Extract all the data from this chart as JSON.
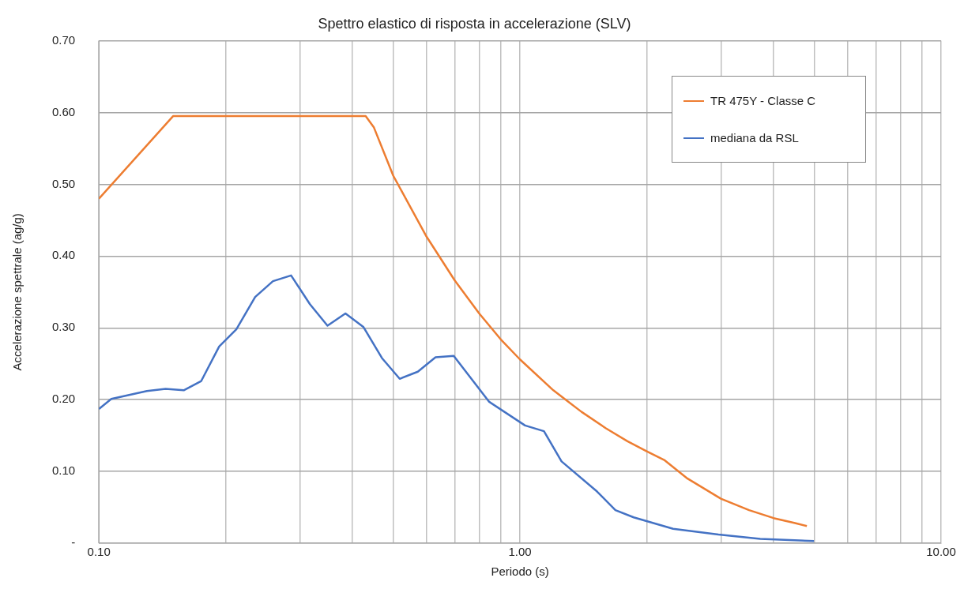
{
  "chart_data": {
    "type": "line",
    "title": "Spettro elastico di risposta in accelerazione (SLV)",
    "xlabel": "Periodo (s)",
    "ylabel": "Accelerazione spettrale (ag/g)",
    "log": "x",
    "grid": true,
    "legend": "top right",
    "marker": "none",
    "line_style": "solid",
    "xlim": [
      0.1,
      10
    ],
    "xticks": [
      {
        "value": 0.1,
        "label": "0.10"
      },
      {
        "value": 0.2,
        "label": null
      },
      {
        "value": 0.3,
        "label": null
      },
      {
        "value": 0.4,
        "label": null
      },
      {
        "value": 0.5,
        "label": null
      },
      {
        "value": 0.6,
        "label": null
      },
      {
        "value": 0.7,
        "label": null
      },
      {
        "value": 0.8,
        "label": null
      },
      {
        "value": 0.9,
        "label": null
      },
      {
        "value": 1,
        "label": "1.00"
      },
      {
        "value": 2,
        "label": null
      },
      {
        "value": 3,
        "label": null
      },
      {
        "value": 4,
        "label": null
      },
      {
        "value": 5,
        "label": null
      },
      {
        "value": 6,
        "label": null
      },
      {
        "value": 7,
        "label": null
      },
      {
        "value": 8,
        "label": null
      },
      {
        "value": 9,
        "label": null
      },
      {
        "value": 10,
        "label": "10.00"
      }
    ],
    "ylim": [
      0,
      0.7
    ],
    "yticks": [
      {
        "value": 0,
        "label": "-"
      },
      {
        "value": 0.1,
        "label": "0.10"
      },
      {
        "value": 0.2,
        "label": "0.20"
      },
      {
        "value": 0.3,
        "label": "0.30"
      },
      {
        "value": 0.4,
        "label": "0.40"
      },
      {
        "value": 0.5,
        "label": "0.50"
      },
      {
        "value": 0.6,
        "label": "0.60"
      },
      {
        "value": 0.7,
        "label": "0.70"
      }
    ],
    "series": [
      {
        "name": "TR 475Y - Classe C",
        "color": "#ed7d31",
        "x": [
          0.1,
          0.15,
          0.43,
          0.45,
          0.5,
          0.6,
          0.7,
          0.8,
          0.9,
          1.0,
          1.2,
          1.4,
          1.6,
          1.8,
          2.0,
          2.2,
          2.5,
          3.0,
          3.5,
          4.0,
          4.5,
          4.8
        ],
        "values": [
          0.48,
          0.595,
          0.595,
          0.579,
          0.512,
          0.427,
          0.366,
          0.32,
          0.284,
          0.256,
          0.213,
          0.183,
          0.16,
          0.142,
          0.128,
          0.116,
          0.09,
          0.062,
          0.046,
          0.035,
          0.028,
          0.024
        ]
      },
      {
        "name": "mediana da RSL",
        "color": "#4472c4",
        "x": [
          0.1,
          0.107,
          0.13,
          0.144,
          0.159,
          0.175,
          0.193,
          0.212,
          0.235,
          0.259,
          0.286,
          0.317,
          0.349,
          0.385,
          0.425,
          0.47,
          0.518,
          0.572,
          0.63,
          0.696,
          0.845,
          1.028,
          1.14,
          1.255,
          1.524,
          1.685,
          1.862,
          2.31,
          2.96,
          3.72,
          4.99
        ],
        "values": [
          0.187,
          0.201,
          0.212,
          0.215,
          0.213,
          0.226,
          0.274,
          0.298,
          0.343,
          0.365,
          0.373,
          0.333,
          0.303,
          0.32,
          0.301,
          0.258,
          0.229,
          0.239,
          0.259,
          0.261,
          0.197,
          0.164,
          0.156,
          0.114,
          0.072,
          0.046,
          0.036,
          0.02,
          0.012,
          0.006,
          0.003
        ]
      }
    ]
  }
}
